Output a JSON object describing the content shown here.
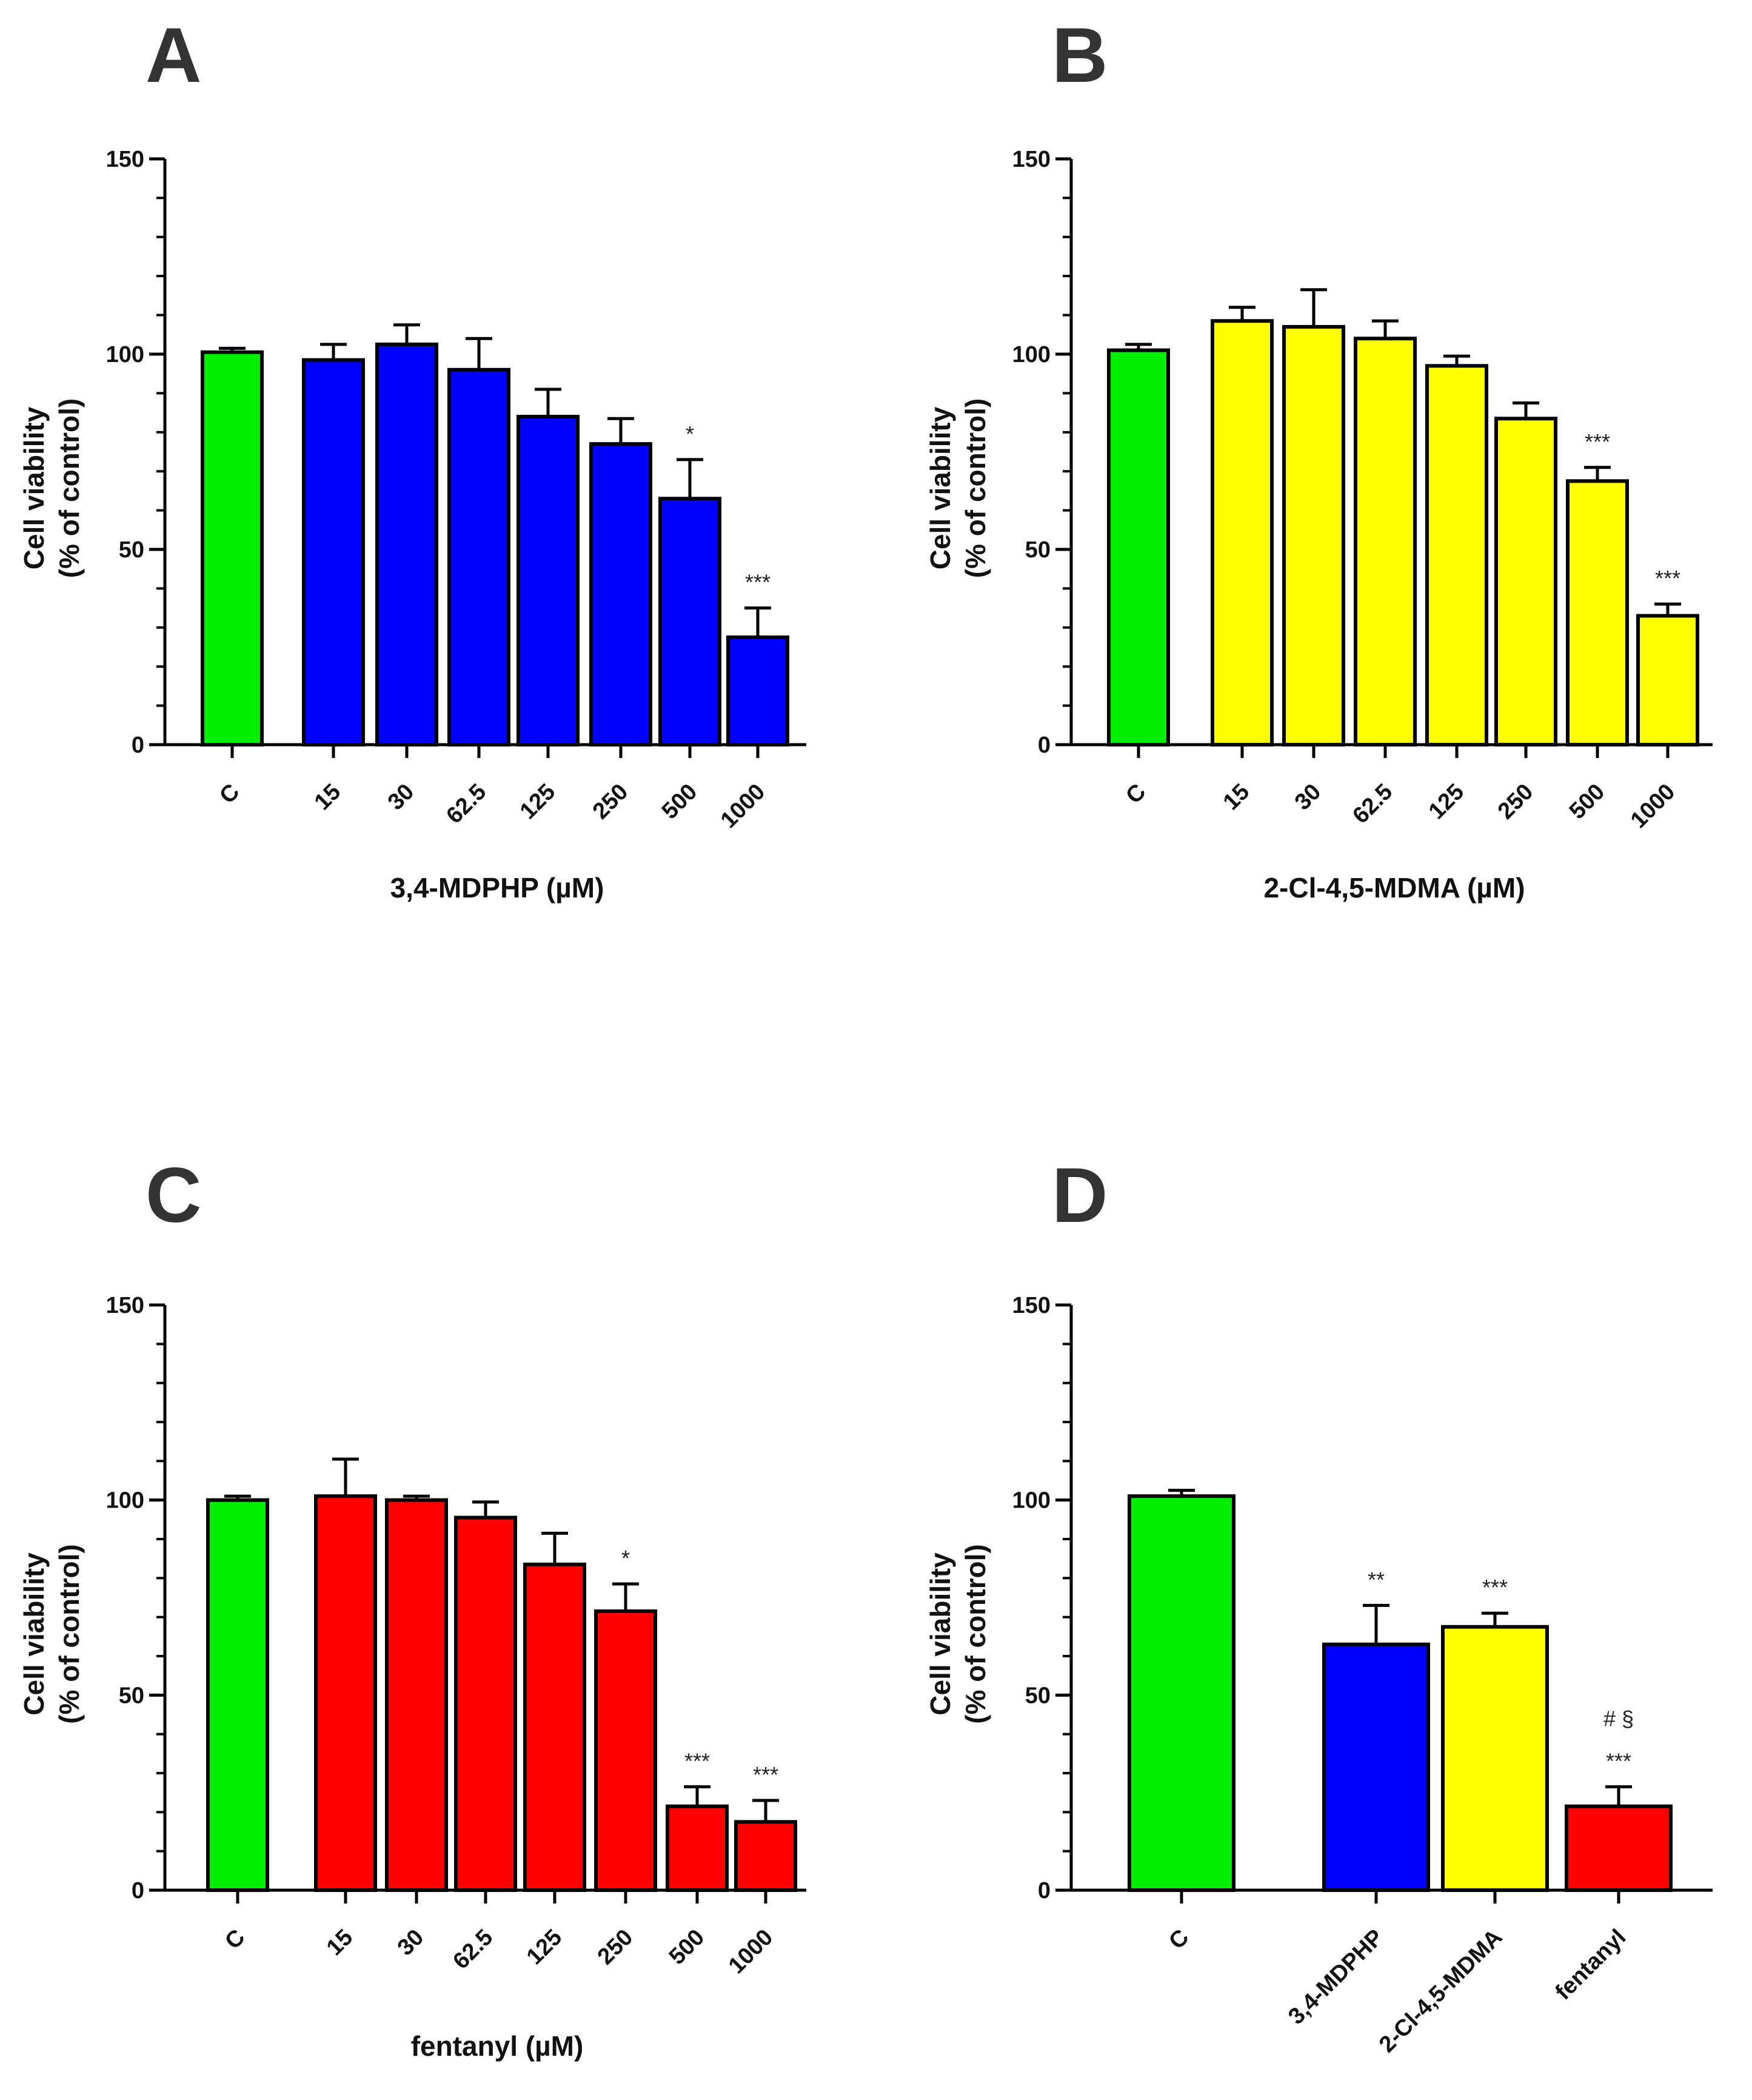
{
  "chart_data": [
    {
      "type": "bar",
      "panel": "A",
      "ylabel": [
        "Cell viability",
        "(% of control)"
      ],
      "xlabel": "3,4-MDPHP (µM)",
      "ylim": [
        0,
        150
      ],
      "yticks": [
        "0",
        "50",
        "100",
        "150"
      ],
      "categories": [
        "C",
        "15",
        "30",
        "62.5",
        "125",
        "250",
        "500",
        "1000"
      ],
      "values": [
        100.5,
        98.5,
        102.5,
        96,
        84,
        77,
        63,
        27.5
      ],
      "errors": [
        1,
        4,
        5,
        8,
        7,
        6.5,
        10,
        7.5
      ],
      "colors": [
        "#00ee00",
        "#0000ff",
        "#0000ff",
        "#0000ff",
        "#0000ff",
        "#0000ff",
        "#0000ff",
        "#0000ff"
      ],
      "annotations": [
        {
          "index": 6,
          "text": "*"
        },
        {
          "index": 7,
          "text": "***"
        }
      ]
    },
    {
      "type": "bar",
      "panel": "B",
      "ylabel": [
        "Cell viability",
        "(% of control)"
      ],
      "xlabel": "2-Cl-4,5-MDMA (µM)",
      "ylim": [
        0,
        150
      ],
      "yticks": [
        "0",
        "50",
        "100",
        "150"
      ],
      "categories": [
        "C",
        "15",
        "30",
        "62.5",
        "125",
        "250",
        "500",
        "1000"
      ],
      "values": [
        101,
        108.5,
        107,
        104,
        97,
        83.5,
        67.5,
        33
      ],
      "errors": [
        1.5,
        3.5,
        9.5,
        4.5,
        2.5,
        4,
        3.5,
        3
      ],
      "colors": [
        "#00ee00",
        "#ffff00",
        "#ffff00",
        "#ffff00",
        "#ffff00",
        "#ffff00",
        "#ffff00",
        "#ffff00"
      ],
      "annotations": [
        {
          "index": 6,
          "text": "***"
        },
        {
          "index": 7,
          "text": "***"
        }
      ]
    },
    {
      "type": "bar",
      "panel": "C",
      "ylabel": [
        "Cell viability",
        "(% of control)"
      ],
      "xlabel": "fentanyl (µM)",
      "ylim": [
        0,
        150
      ],
      "yticks": [
        "0",
        "50",
        "100",
        "150"
      ],
      "categories": [
        "C",
        "15",
        "30",
        "62.5",
        "125",
        "250",
        "500",
        "1000"
      ],
      "values": [
        100,
        101,
        100,
        95.5,
        83.5,
        71.5,
        21.5,
        17.5
      ],
      "errors": [
        1,
        9.5,
        1,
        4,
        8,
        7,
        5,
        5.5
      ],
      "colors": [
        "#00ee00",
        "#ff0000",
        "#ff0000",
        "#ff0000",
        "#ff0000",
        "#ff0000",
        "#ff0000",
        "#ff0000"
      ],
      "annotations": [
        {
          "index": 5,
          "text": "*"
        },
        {
          "index": 6,
          "text": "***"
        },
        {
          "index": 7,
          "text": "***"
        }
      ]
    },
    {
      "type": "bar",
      "panel": "D",
      "ylabel": [
        "Cell viability",
        "(% of control)"
      ],
      "xlabel": "",
      "ylim": [
        0,
        150
      ],
      "yticks": [
        "0",
        "50",
        "100",
        "150"
      ],
      "categories": [
        "C",
        "3,4-MDPHP",
        "2-Cl-4,5-MDMA",
        "fentanyl"
      ],
      "values": [
        101,
        63,
        67.5,
        21.5
      ],
      "errors": [
        1.5,
        10,
        3.5,
        5
      ],
      "colors": [
        "#00ee00",
        "#0000ff",
        "#ffff00",
        "#ff0000"
      ],
      "annotations": [
        {
          "index": 1,
          "text": "**"
        },
        {
          "index": 2,
          "text": "***"
        },
        {
          "index": 3,
          "text": "***"
        },
        {
          "index": 3,
          "text": "# §"
        }
      ]
    }
  ]
}
